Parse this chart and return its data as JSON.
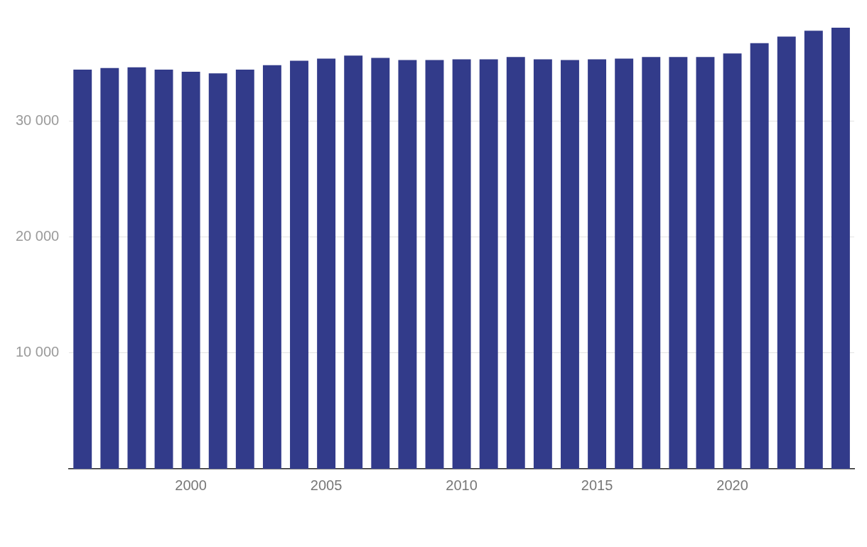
{
  "chart_data": {
    "type": "bar",
    "categories": [
      null,
      null,
      null,
      null,
      "2000",
      null,
      null,
      null,
      null,
      "2005",
      null,
      null,
      null,
      null,
      "2010",
      null,
      null,
      null,
      null,
      "2015",
      null,
      null,
      null,
      null,
      "2020",
      null,
      null,
      null,
      null
    ],
    "values": [
      34430,
      34560,
      34620,
      34430,
      34240,
      34110,
      34430,
      34810,
      35190,
      35380,
      35630,
      35440,
      35250,
      35250,
      35320,
      35320,
      35510,
      35320,
      35250,
      35320,
      35380,
      35510,
      35510,
      35510,
      35820,
      36710,
      37280,
      37780,
      38040
    ],
    "color": "#323b8a",
    "ylim": [
      0,
      38100
    ],
    "yticks": [
      {
        "value": 10000,
        "label": "10 000"
      },
      {
        "value": 20000,
        "label": "20 000"
      },
      {
        "value": 30000,
        "label": "30 000"
      }
    ],
    "grid": "y"
  }
}
